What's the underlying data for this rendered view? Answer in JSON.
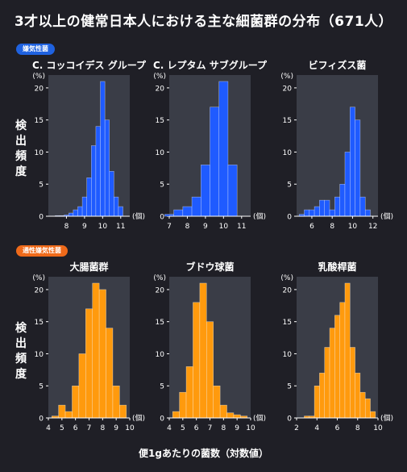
{
  "title": "3才以上の健常日本人における主な細菌群の分布（671人）",
  "badges": {
    "anaerobe": "嫌気性菌",
    "facultative": "通性嫌気性菌"
  },
  "ylabel_lines": [
    "検",
    "出",
    "頻",
    "度"
  ],
  "xlabel": "便1gあたりの菌数（対数値）",
  "colors": {
    "anaerobe": "#1f5bff",
    "facultative": "#ff9a0d",
    "panel_bg": "#3a3d47",
    "page_bg": "#1f1f26"
  },
  "chart_data": [
    {
      "type": "bar",
      "title": "C. コッコイデス グループ",
      "ylabel": "(%)",
      "xunit": "(個)",
      "color": "#1f5bff",
      "xlim": [
        7,
        11.5
      ],
      "ylim": [
        0,
        22
      ],
      "xticks": [
        8,
        9,
        10,
        11
      ],
      "yticks": [
        0,
        5,
        10,
        15,
        20
      ],
      "bin_width": 0.25,
      "x": [
        7.5,
        7.75,
        8.0,
        8.25,
        8.5,
        8.75,
        9.0,
        9.25,
        9.5,
        9.75,
        10.0,
        10.25,
        10.5,
        10.75,
        11.0
      ],
      "values": [
        0.1,
        0.1,
        0.2,
        0.5,
        1.0,
        1.5,
        3.0,
        6.0,
        11.0,
        14.0,
        21.0,
        15.0,
        7.0,
        3.0,
        1.5
      ]
    },
    {
      "type": "bar",
      "title": "C. レプタム サブグループ",
      "ylabel": "(%)",
      "xunit": "(個)",
      "color": "#1f5bff",
      "xlim": [
        7,
        11.5
      ],
      "ylim": [
        0,
        22
      ],
      "xticks": [
        7,
        8,
        9,
        10,
        11
      ],
      "yticks": [
        0,
        5,
        10,
        15,
        20
      ],
      "bin_width": 0.5,
      "x": [
        7.0,
        7.5,
        8.0,
        8.5,
        9.0,
        9.5,
        10.0,
        10.5
      ],
      "values": [
        0.3,
        1.0,
        1.5,
        3.0,
        8.0,
        17.0,
        21.0,
        8.0
      ]
    },
    {
      "type": "bar",
      "title": "ビフィズス菌",
      "ylabel": "(%)",
      "xunit": "(個)",
      "color": "#1f5bff",
      "xlim": [
        4.5,
        12.5
      ],
      "ylim": [
        0,
        22
      ],
      "xticks": [
        6,
        8,
        10,
        12
      ],
      "yticks": [
        0,
        5,
        10,
        15,
        20
      ],
      "bin_width": 0.5,
      "x": [
        5.0,
        5.5,
        6.0,
        6.5,
        7.0,
        7.5,
        8.0,
        8.5,
        9.0,
        9.5,
        10.0,
        10.5,
        11.0,
        11.5
      ],
      "values": [
        0.3,
        1.0,
        1.0,
        1.5,
        2.5,
        2.5,
        1.0,
        3.0,
        5.0,
        10.0,
        17.0,
        15.0,
        3.0,
        1.0
      ]
    },
    {
      "type": "bar",
      "title": "大腸菌群",
      "ylabel": "(%)",
      "xunit": "(個)",
      "color": "#ff9a0d",
      "xlim": [
        4,
        10
      ],
      "ylim": [
        0,
        22
      ],
      "xticks": [
        4,
        5,
        6,
        7,
        8,
        9,
        10
      ],
      "yticks": [
        0,
        5,
        10,
        15,
        20
      ],
      "bin_width": 0.5,
      "x": [
        4.5,
        5.0,
        5.5,
        6.0,
        6.5,
        7.0,
        7.5,
        8.0,
        8.5,
        9.0,
        9.5
      ],
      "values": [
        0.3,
        2.0,
        1.0,
        5.0,
        10.0,
        17.0,
        21.0,
        20.0,
        14.0,
        5.0,
        2.0
      ]
    },
    {
      "type": "bar",
      "title": "ブドウ球菌",
      "ylabel": "(%)",
      "xunit": "(個)",
      "color": "#ff9a0d",
      "xlim": [
        4,
        10
      ],
      "ylim": [
        0,
        22
      ],
      "xticks": [
        4,
        5,
        6,
        7,
        8,
        9,
        10
      ],
      "yticks": [
        0,
        5,
        10,
        15,
        20
      ],
      "bin_width": 0.5,
      "x": [
        4.5,
        5.0,
        5.5,
        6.0,
        6.5,
        7.0,
        7.5,
        8.0,
        8.5,
        9.0,
        9.5
      ],
      "values": [
        1.0,
        4.0,
        8.0,
        18.0,
        21.0,
        15.0,
        5.0,
        2.0,
        0.8,
        0.5,
        0.3
      ]
    },
    {
      "type": "bar",
      "title": "乳酸桿菌",
      "ylabel": "(%)",
      "xunit": "(個)",
      "color": "#ff9a0d",
      "xlim": [
        2,
        10
      ],
      "ylim": [
        0,
        22
      ],
      "xticks": [
        2,
        4,
        6,
        8,
        10
      ],
      "yticks": [
        0,
        5,
        10,
        15,
        20
      ],
      "bin_width": 0.5,
      "x": [
        3.0,
        3.5,
        4.0,
        4.5,
        5.0,
        5.5,
        6.0,
        6.5,
        7.0,
        7.5,
        8.0,
        8.5,
        9.0,
        9.5
      ],
      "values": [
        0.3,
        0.3,
        5.0,
        7.0,
        11.0,
        14.0,
        16.0,
        18.0,
        21.0,
        11.0,
        7.0,
        4.0,
        3.0,
        1.0
      ]
    }
  ]
}
